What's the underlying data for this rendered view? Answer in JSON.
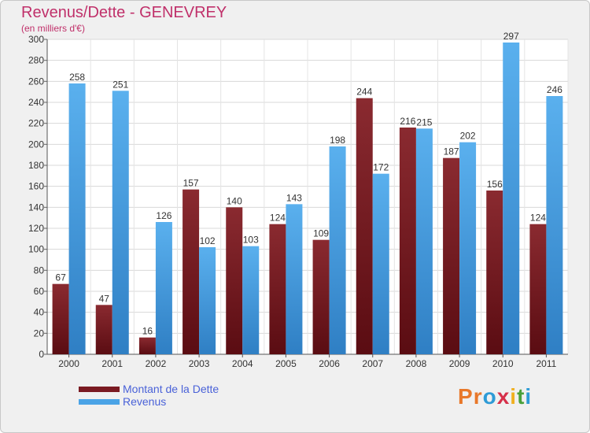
{
  "colors": {
    "debt": "#7a1a22",
    "revenue": "#4aa3e6",
    "title": "#c0306a",
    "legend_text": "#4a62d8"
  },
  "logo": {
    "text": "Proxiti",
    "letter_colors": [
      "#e8782a",
      "#e8782a",
      "#2e9bd6",
      "#d6304a",
      "#f0b020",
      "#4aa03a",
      "#2e9bd6"
    ]
  },
  "chart_data": {
    "type": "bar",
    "title": "Revenus/Dette - GENEVREY",
    "subtitle": "(en milliers d'€)",
    "categories": [
      "2000",
      "2001",
      "2002",
      "2003",
      "2004",
      "2005",
      "2006",
      "2007",
      "2008",
      "2009",
      "2010",
      "2011"
    ],
    "series": [
      {
        "name": "Montant de la Dette",
        "values": [
          67,
          47,
          16,
          157,
          140,
          124,
          109,
          244,
          216,
          187,
          156,
          124
        ]
      },
      {
        "name": "Revenus",
        "values": [
          258,
          251,
          126,
          102,
          103,
          143,
          198,
          172,
          215,
          202,
          297,
          246
        ]
      }
    ],
    "ylim": [
      0,
      300
    ],
    "yticks": [
      0,
      20,
      40,
      60,
      80,
      100,
      120,
      140,
      160,
      180,
      200,
      220,
      240,
      260,
      280,
      300
    ],
    "grid": true,
    "legend_position": "bottom-left"
  }
}
